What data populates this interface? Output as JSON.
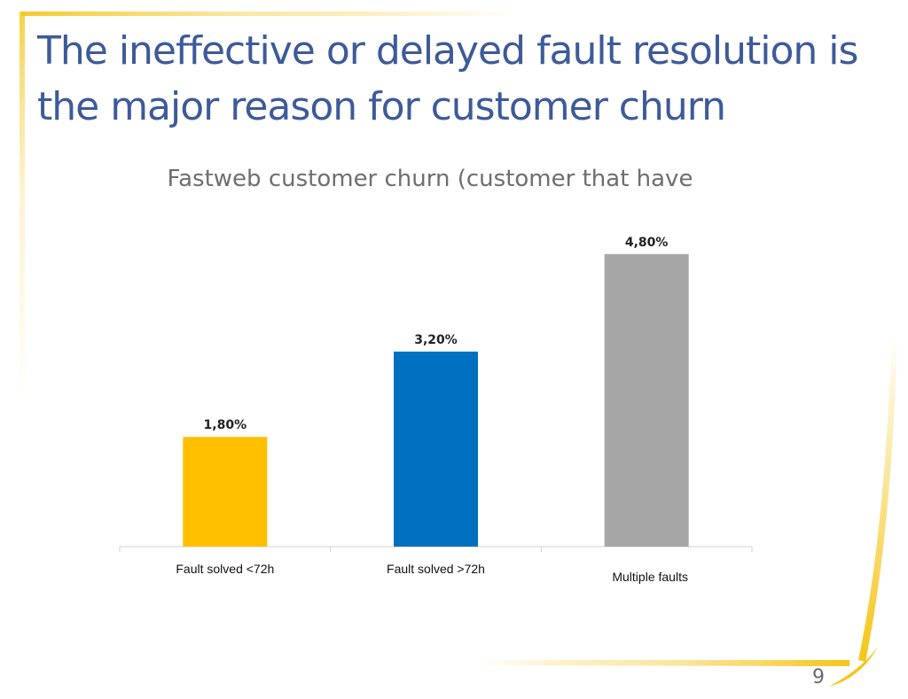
{
  "slide": {
    "title_lines": [
      "The ineffective or delayed fault resolution is",
      "the major reason for customer churn"
    ],
    "page_number": "9"
  },
  "chart_data": {
    "type": "bar",
    "title": "Fastweb customer churn (customer that have",
    "categories": [
      "Fault solved <72h",
      "Fault solved >72h",
      "Multiple faults"
    ],
    "values": [
      1.8,
      3.2,
      4.8
    ],
    "data_labels": [
      "1,80%",
      "3,20%",
      "4,80%"
    ],
    "bar_colors": [
      "#ffc000",
      "#0070c0",
      "#a6a6a6"
    ],
    "ylim": [
      0,
      5.0
    ],
    "xlabel": "",
    "ylabel": "",
    "grid": false
  },
  "theme": {
    "title_color": "#3d5a99",
    "accent_yellow": "#f5c518",
    "axis_color": "#d0d0d0"
  }
}
